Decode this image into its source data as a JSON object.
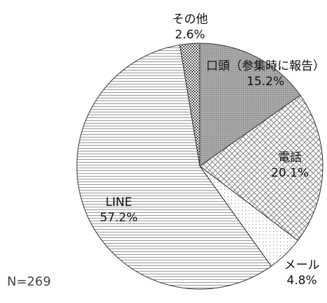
{
  "chart_data": {
    "type": "pie",
    "categories": [
      "口頭（参集時に報告）",
      "電話",
      "メール",
      "LINE",
      "その他"
    ],
    "values": [
      15.2,
      20.1,
      4.8,
      57.2,
      2.6
    ],
    "value_labels": [
      "15.2%",
      "20.1%",
      "4.8%",
      "57.2%",
      "2.6%"
    ],
    "note": "N=269"
  }
}
